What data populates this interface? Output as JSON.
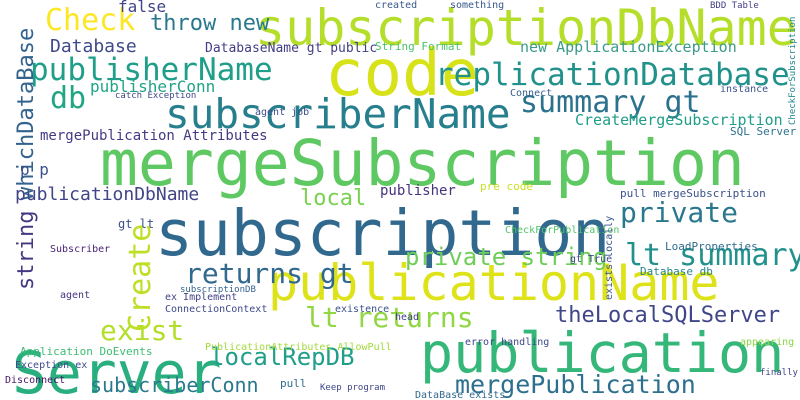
{
  "words": [
    {
      "text": "subscriptionDbName",
      "color": "#b5de2b"
    },
    {
      "text": "mergeSubscription",
      "color": "#5ec962"
    },
    {
      "text": "subscription",
      "color": "#31688e"
    },
    {
      "text": "publicationName",
      "color": "#dde318"
    },
    {
      "text": "publication",
      "color": "#35b779"
    },
    {
      "text": "Server",
      "color": "#29af7f"
    },
    {
      "text": "code",
      "color": "#d8e219"
    },
    {
      "text": "subscriberName",
      "color": "#277f8e"
    },
    {
      "text": "replicationDatabase",
      "color": "#21918c"
    },
    {
      "text": "publisherName",
      "color": "#1f9e89"
    },
    {
      "text": "Check",
      "color": "#fde725"
    },
    {
      "text": "throw new",
      "color": "#2a788e"
    },
    {
      "text": "Database",
      "color": "#3e4a89"
    },
    {
      "text": "db",
      "color": "#21a685"
    },
    {
      "text": "summary gt",
      "color": "#2c728e"
    },
    {
      "text": "CreateMergeSubscription",
      "color": "#1f9e89"
    },
    {
      "text": "whichDataBase",
      "color": "#33638d"
    },
    {
      "text": "publisherConn",
      "color": "#20a486"
    },
    {
      "text": "mergePublication Attributes",
      "color": "#443a83"
    },
    {
      "text": "publicationDbName",
      "color": "#414487"
    },
    {
      "text": "p p",
      "color": "#3b528b"
    },
    {
      "text": "string",
      "color": "#453781"
    },
    {
      "text": "Create",
      "color": "#bddf26"
    },
    {
      "text": "returns gt",
      "color": "#31688e"
    },
    {
      "text": "exist",
      "color": "#b5de2b"
    },
    {
      "text": "local",
      "color": "#7ad151"
    },
    {
      "text": "private",
      "color": "#2a788e"
    },
    {
      "text": "private string",
      "color": "#6ece58"
    },
    {
      "text": "lt summary",
      "color": "#21918c"
    },
    {
      "text": "theLocalSQLServer",
      "color": "#404688"
    },
    {
      "text": "lt returns",
      "color": "#90d743"
    },
    {
      "text": "localRepDB",
      "color": "#1f9e89"
    },
    {
      "text": "mergePublication",
      "color": "#2d708e"
    },
    {
      "text": "subscriberConn",
      "color": "#2a788e"
    },
    {
      "text": "PublicationAttributes AllowPull",
      "color": "#a0da39"
    },
    {
      "text": "new ApplicationException",
      "color": "#3b9a8a"
    },
    {
      "text": "DatabaseName gt public",
      "color": "#433e85"
    },
    {
      "text": "String Format",
      "color": "#4ac16d"
    },
    {
      "text": "publisher",
      "color": "#46337e"
    },
    {
      "text": "pull mergeSubscription",
      "color": "#3b528b"
    },
    {
      "text": "SQL Server",
      "color": "#2c728e"
    },
    {
      "text": "Subscriber",
      "color": "#482475"
    },
    {
      "text": "Application DoEvents",
      "color": "#3dbc74"
    },
    {
      "text": "Disconnect",
      "color": "#471365"
    },
    {
      "text": "false",
      "color": "#414487"
    },
    {
      "text": "Connect",
      "color": "#355f8d"
    },
    {
      "text": "DataBase exists",
      "color": "#30698e"
    },
    {
      "text": "ConnectionContext",
      "color": "#3e4989"
    },
    {
      "text": "LoadProperties",
      "color": "#2f6c8e"
    },
    {
      "text": "Database db",
      "color": "#25848e"
    },
    {
      "text": "CheckForPublication",
      "color": "#50c46a"
    },
    {
      "text": "pre code",
      "color": "#c8e020"
    },
    {
      "text": "gt True",
      "color": "#3e4989"
    },
    {
      "text": "Keep program",
      "color": "#3f4788"
    },
    {
      "text": "pull",
      "color": "#2e6e8e"
    },
    {
      "text": "instance",
      "color": "#3a548c"
    },
    {
      "text": "created",
      "color": "#38588c"
    },
    {
      "text": "BDD Table",
      "color": "#424086"
    },
    {
      "text": "catch Exception",
      "color": "#3f4889"
    },
    {
      "text": "agent job",
      "color": "#3d4d8a"
    },
    {
      "text": "finally",
      "color": "#414487"
    },
    {
      "text": "error handling",
      "color": "#3f4889"
    },
    {
      "text": "existence",
      "color": "#3b518b"
    },
    {
      "text": "head",
      "color": "#424086"
    },
    {
      "text": "Exception ex",
      "color": "#3e4a89"
    },
    {
      "text": "agent",
      "color": "#46337f"
    },
    {
      "text": "gt lt",
      "color": "#3c4f8a"
    },
    {
      "text": "appearing",
      "color": "#8bd646"
    },
    {
      "text": "ex Implement",
      "color": "#424186"
    },
    {
      "text": "subscriptionDB",
      "color": "#34618d"
    },
    {
      "text": "CheckForSubscription",
      "color": "#23898e"
    },
    {
      "text": "exists locally",
      "color": "#3a548c"
    },
    {
      "text": "something",
      "color": "#38598c"
    }
  ]
}
